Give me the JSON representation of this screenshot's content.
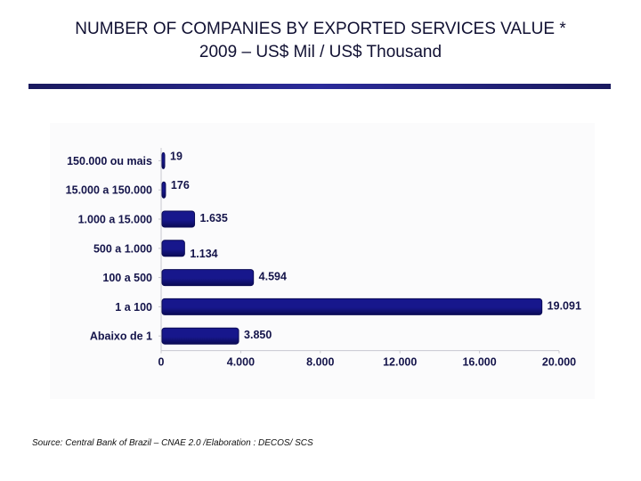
{
  "header": {
    "title_line1": "NUMBER OF COMPANIES BY EXPORTED SERVICES VALUE *",
    "title_line2": "2009 – US$ Mil / US$ Thousand"
  },
  "footer": {
    "source": "Source: Central Bank of Brazil – CNAE 2.0 /Elaboration : DECOS/ SCS"
  },
  "colors": {
    "bar": "#17178c",
    "bar_dark": "#0b0b55",
    "rule": "#23237a"
  },
  "chart_data": {
    "type": "bar",
    "orientation": "horizontal",
    "title": "NUMBER OF COMPANIES BY EXPORTED SERVICES VALUE * 2009 – US$ Mil / US$ Thousand",
    "xlabel": "",
    "ylabel": "",
    "categories": [
      "150.000 ou mais",
      "15.000 a 150.000",
      "1.000 a 15.000",
      "500 a 1.000",
      "100 a 500",
      "1 a 100",
      "Abaixo de 1"
    ],
    "values": [
      19,
      176,
      1635,
      1134,
      4594,
      19091,
      3850
    ],
    "value_labels": [
      "19",
      "176",
      "1.635",
      "1.134",
      "4.594",
      "19.091",
      "3.850"
    ],
    "xlim": [
      0,
      20000
    ],
    "x_ticks": [
      0,
      4000,
      8000,
      12000,
      16000,
      20000
    ],
    "x_tick_labels": [
      "0",
      "4.000",
      "8.000",
      "12.000",
      "16.000",
      "20.000"
    ],
    "grid": false,
    "legend": "none"
  }
}
